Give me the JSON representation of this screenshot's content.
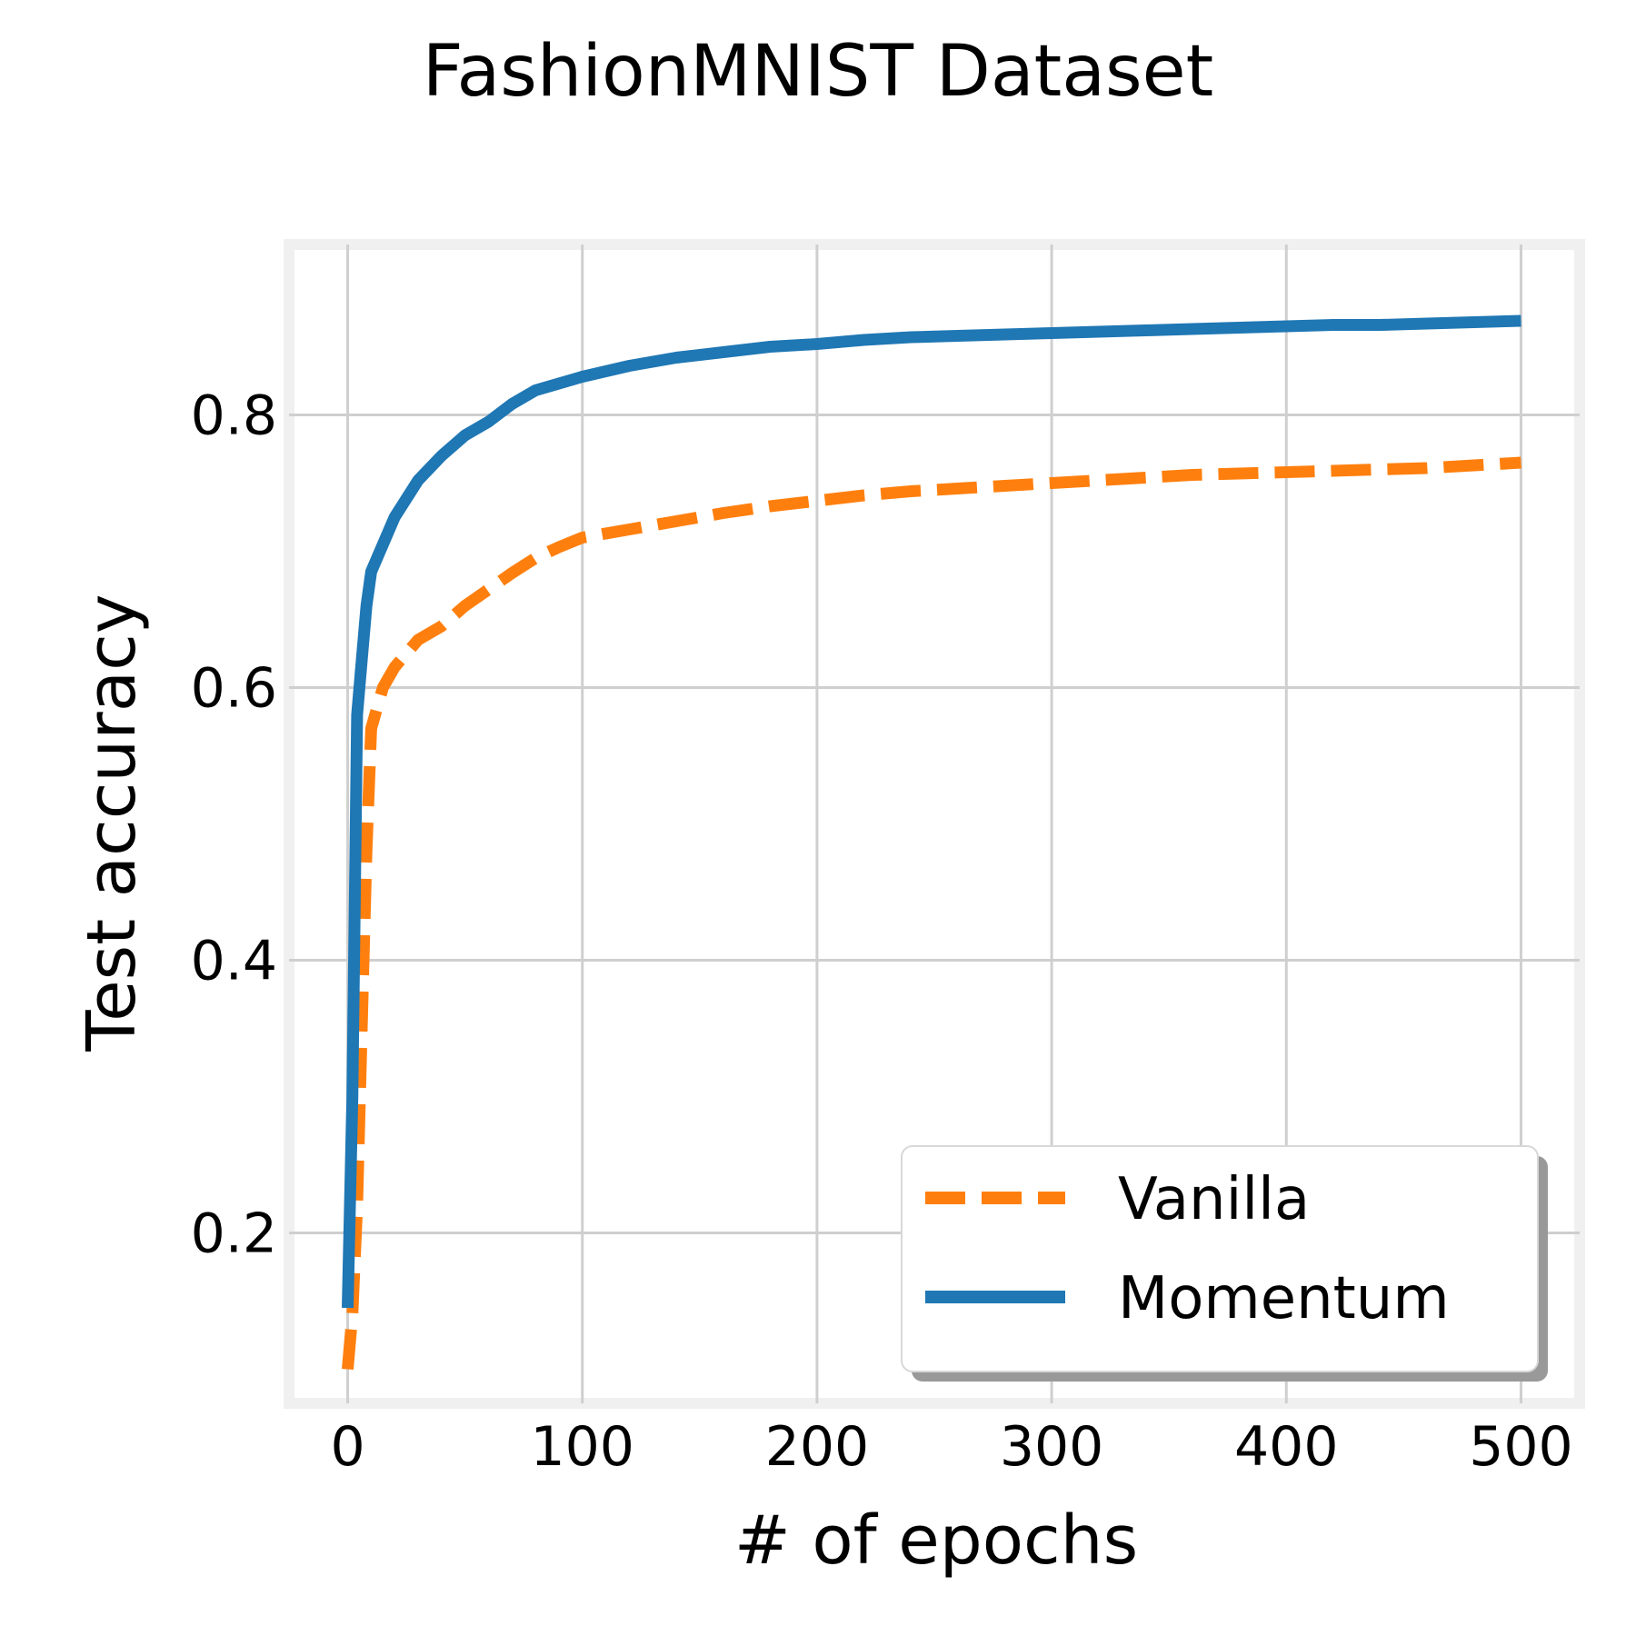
{
  "chart_data": {
    "type": "line",
    "title": "FashionMNIST Dataset",
    "xlabel": "# of epochs",
    "ylabel": "Test accuracy",
    "xlim": [
      -25,
      525
    ],
    "ylim": [
      0.075,
      0.925
    ],
    "xticks": [
      "0",
      "100",
      "200",
      "300",
      "400",
      "500"
    ],
    "xtick_values": [
      0,
      100,
      200,
      300,
      400,
      500
    ],
    "yticks": [
      "0.2",
      "0.4",
      "0.6",
      "0.8"
    ],
    "ytick_values": [
      0.2,
      0.4,
      0.6,
      0.8
    ],
    "grid": true,
    "legend_position": "lower-right",
    "series": [
      {
        "name": "Vanilla",
        "color": "#ff7f0e",
        "dash": true,
        "x": [
          0,
          2,
          4,
          6,
          8,
          10,
          15,
          20,
          30,
          40,
          50,
          60,
          70,
          80,
          90,
          100,
          120,
          140,
          160,
          180,
          200,
          220,
          240,
          260,
          280,
          300,
          320,
          340,
          360,
          380,
          400,
          420,
          440,
          460,
          480,
          500
        ],
        "y": [
          0.1,
          0.14,
          0.22,
          0.35,
          0.48,
          0.57,
          0.6,
          0.615,
          0.635,
          0.645,
          0.66,
          0.672,
          0.684,
          0.695,
          0.703,
          0.71,
          0.716,
          0.722,
          0.728,
          0.733,
          0.737,
          0.741,
          0.744,
          0.746,
          0.748,
          0.75,
          0.752,
          0.754,
          0.756,
          0.757,
          0.758,
          0.759,
          0.76,
          0.761,
          0.763,
          0.765
        ]
      },
      {
        "name": "Momentum",
        "color": "#1f77b4",
        "dash": false,
        "x": [
          0,
          2,
          4,
          6,
          8,
          10,
          15,
          20,
          30,
          40,
          50,
          60,
          70,
          80,
          90,
          100,
          120,
          140,
          160,
          180,
          200,
          220,
          240,
          260,
          280,
          300,
          320,
          340,
          360,
          380,
          400,
          420,
          440,
          460,
          480,
          500
        ],
        "y": [
          0.145,
          0.3,
          0.58,
          0.62,
          0.66,
          0.685,
          0.705,
          0.725,
          0.752,
          0.77,
          0.785,
          0.795,
          0.808,
          0.818,
          0.823,
          0.828,
          0.836,
          0.842,
          0.846,
          0.85,
          0.852,
          0.855,
          0.857,
          0.858,
          0.859,
          0.86,
          0.861,
          0.862,
          0.863,
          0.864,
          0.865,
          0.866,
          0.866,
          0.867,
          0.868,
          0.869
        ]
      }
    ]
  }
}
